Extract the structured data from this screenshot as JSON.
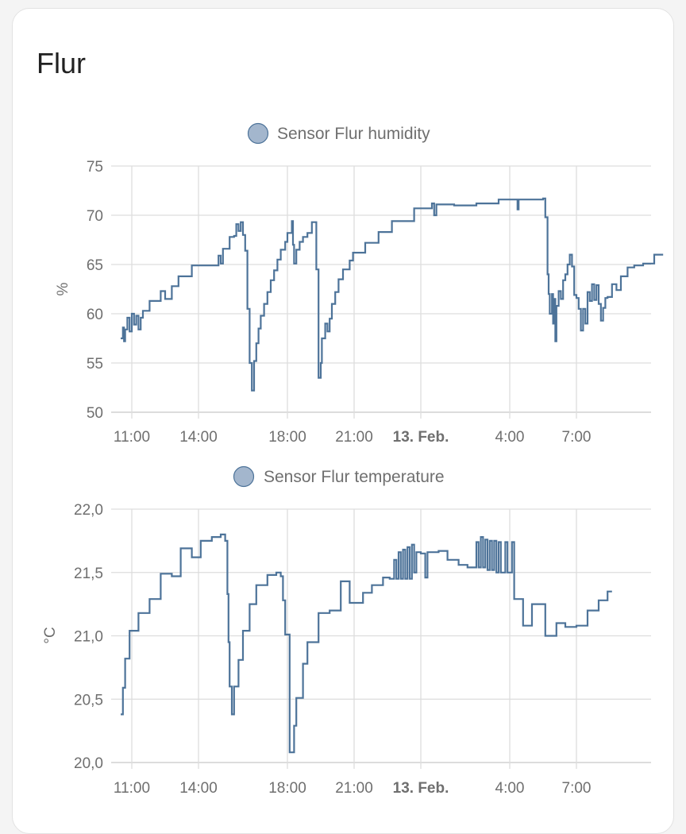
{
  "card": {
    "title": "Flur"
  },
  "colors": {
    "line": "#4d7399",
    "legend_fill": "#a3b6cd",
    "legend_stroke": "#4d7399",
    "grid": "#dddddd",
    "text": "#6f6f6f"
  },
  "chart_data": [
    {
      "type": "line",
      "legend": "Sensor Flur humidity",
      "ylabel": "%",
      "ylim": [
        50,
        75
      ],
      "yticks": [
        "50",
        "55",
        "60",
        "65",
        "70",
        "75"
      ],
      "x_unit": "hours since 00:00 on 12 Feb",
      "xticks": [
        {
          "label": "11:00",
          "x": 11,
          "bold": false
        },
        {
          "label": "14:00",
          "x": 14,
          "bold": false
        },
        {
          "label": "18:00",
          "x": 18,
          "bold": false
        },
        {
          "label": "21:00",
          "x": 21,
          "bold": false
        },
        {
          "label": "13. Feb.",
          "x": 24,
          "bold": true
        },
        {
          "label": "4:00",
          "x": 28,
          "bold": false
        },
        {
          "label": "7:00",
          "x": 31,
          "bold": false
        }
      ],
      "xlim": [
        10.5,
        34.9
      ],
      "series": [
        {
          "name": "Sensor Flur humidity",
          "step": true,
          "points": [
            [
              10.5,
              57.5
            ],
            [
              10.6,
              58.6
            ],
            [
              10.65,
              57.2
            ],
            [
              10.7,
              58.4
            ],
            [
              10.8,
              59.6
            ],
            [
              10.9,
              58.2
            ],
            [
              11.0,
              60.0
            ],
            [
              11.1,
              58.9
            ],
            [
              11.2,
              59.8
            ],
            [
              11.3,
              58.4
            ],
            [
              11.4,
              59.6
            ],
            [
              11.5,
              60.3
            ],
            [
              11.8,
              61.3
            ],
            [
              12.2,
              61.3
            ],
            [
              12.3,
              62.3
            ],
            [
              12.5,
              61.5
            ],
            [
              12.8,
              62.8
            ],
            [
              13.1,
              63.8
            ],
            [
              13.6,
              63.8
            ],
            [
              13.7,
              64.9
            ],
            [
              14.8,
              64.9
            ],
            [
              14.9,
              65.9
            ],
            [
              15.0,
              65.1
            ],
            [
              15.1,
              66.6
            ],
            [
              15.4,
              67.8
            ],
            [
              15.6,
              67.9
            ],
            [
              15.7,
              69.1
            ],
            [
              15.8,
              68.4
            ],
            [
              15.9,
              69.3
            ],
            [
              16.0,
              68.0
            ],
            [
              16.1,
              66.4
            ],
            [
              16.2,
              60.5
            ],
            [
              16.3,
              55.0
            ],
            [
              16.4,
              52.2
            ],
            [
              16.5,
              55.2
            ],
            [
              16.6,
              57.0
            ],
            [
              16.7,
              58.5
            ],
            [
              16.8,
              59.8
            ],
            [
              16.95,
              61.0
            ],
            [
              17.1,
              62.2
            ],
            [
              17.25,
              63.4
            ],
            [
              17.4,
              64.4
            ],
            [
              17.55,
              65.5
            ],
            [
              17.7,
              66.5
            ],
            [
              17.9,
              67.3
            ],
            [
              18.0,
              68.2
            ],
            [
              18.2,
              69.4
            ],
            [
              18.25,
              67.0
            ],
            [
              18.3,
              65.1
            ],
            [
              18.4,
              66.5
            ],
            [
              18.55,
              67.3
            ],
            [
              18.7,
              67.8
            ],
            [
              18.9,
              68.2
            ],
            [
              19.1,
              69.3
            ],
            [
              19.3,
              64.5
            ],
            [
              19.4,
              53.5
            ],
            [
              19.5,
              55.0
            ],
            [
              19.55,
              57.5
            ],
            [
              19.7,
              59.0
            ],
            [
              19.8,
              58.2
            ],
            [
              19.9,
              59.5
            ],
            [
              20.0,
              61.0
            ],
            [
              20.15,
              62.2
            ],
            [
              20.3,
              63.5
            ],
            [
              20.5,
              64.5
            ],
            [
              20.8,
              65.4
            ],
            [
              20.95,
              66.2
            ],
            [
              21.5,
              67.2
            ],
            [
              22.1,
              68.3
            ],
            [
              22.7,
              69.4
            ],
            [
              23.7,
              70.7
            ],
            [
              24.5,
              71.2
            ],
            [
              24.6,
              70.0
            ],
            [
              24.7,
              71.1
            ],
            [
              25.0,
              71.1
            ],
            [
              25.5,
              71.0
            ],
            [
              26.5,
              71.2
            ],
            [
              27.5,
              71.6
            ],
            [
              28.3,
              71.6
            ],
            [
              28.35,
              70.6
            ],
            [
              28.4,
              71.6
            ],
            [
              29.5,
              71.7
            ],
            [
              29.6,
              69.8
            ],
            [
              29.7,
              64.0
            ],
            [
              29.75,
              62.0
            ],
            [
              29.8,
              60.0
            ],
            [
              29.9,
              62.0
            ],
            [
              29.95,
              59.0
            ],
            [
              30.0,
              61.5
            ],
            [
              30.05,
              57.2
            ],
            [
              30.1,
              60.8
            ],
            [
              30.2,
              62.3
            ],
            [
              30.3,
              61.5
            ],
            [
              30.4,
              63.4
            ],
            [
              30.5,
              64.0
            ],
            [
              30.6,
              65.0
            ],
            [
              30.7,
              66.0
            ],
            [
              30.8,
              64.8
            ],
            [
              30.9,
              61.9
            ],
            [
              31.0,
              61.6
            ],
            [
              31.1,
              60.5
            ],
            [
              31.2,
              58.3
            ],
            [
              31.3,
              60.5
            ],
            [
              31.4,
              59.0
            ],
            [
              31.5,
              62.2
            ],
            [
              31.6,
              61.3
            ],
            [
              31.7,
              63.0
            ],
            [
              31.8,
              61.4
            ],
            [
              31.9,
              62.9
            ],
            [
              32.0,
              61.0
            ],
            [
              32.1,
              59.3
            ],
            [
              32.2,
              60.6
            ],
            [
              32.3,
              61.6
            ],
            [
              32.4,
              61.7
            ],
            [
              32.6,
              63.0
            ],
            [
              32.8,
              62.4
            ],
            [
              33.0,
              63.8
            ],
            [
              33.3,
              64.7
            ],
            [
              33.6,
              64.9
            ],
            [
              34.0,
              65.1
            ],
            [
              34.5,
              66.0
            ],
            [
              34.9,
              66.0
            ]
          ]
        }
      ]
    },
    {
      "type": "line",
      "legend": "Sensor Flur temperature",
      "ylabel": "°C",
      "ylim": [
        20.0,
        22.0
      ],
      "yticks": [
        "20,0",
        "20,5",
        "21,0",
        "21,5",
        "22,0"
      ],
      "x_unit": "hours since 00:00 on 12 Feb",
      "xticks": [
        {
          "label": "11:00",
          "x": 11,
          "bold": false
        },
        {
          "label": "14:00",
          "x": 14,
          "bold": false
        },
        {
          "label": "18:00",
          "x": 18,
          "bold": false
        },
        {
          "label": "21:00",
          "x": 21,
          "bold": false
        },
        {
          "label": "13. Feb.",
          "x": 24,
          "bold": true
        },
        {
          "label": "4:00",
          "x": 28,
          "bold": false
        },
        {
          "label": "7:00",
          "x": 31,
          "bold": false
        }
      ],
      "xlim": [
        10.5,
        34.9
      ],
      "series": [
        {
          "name": "Sensor Flur temperature",
          "step": true,
          "points": [
            [
              10.5,
              20.38
            ],
            [
              10.6,
              20.59
            ],
            [
              10.7,
              20.82
            ],
            [
              10.9,
              21.04
            ],
            [
              11.3,
              21.18
            ],
            [
              11.8,
              21.29
            ],
            [
              12.3,
              21.49
            ],
            [
              12.8,
              21.47
            ],
            [
              13.2,
              21.69
            ],
            [
              13.7,
              21.62
            ],
            [
              14.1,
              21.75
            ],
            [
              14.6,
              21.78
            ],
            [
              15.0,
              21.8
            ],
            [
              15.2,
              21.75
            ],
            [
              15.3,
              21.33
            ],
            [
              15.35,
              20.95
            ],
            [
              15.4,
              20.6
            ],
            [
              15.5,
              20.38
            ],
            [
              15.6,
              20.6
            ],
            [
              15.8,
              20.81
            ],
            [
              16.0,
              21.04
            ],
            [
              16.3,
              21.25
            ],
            [
              16.6,
              21.4
            ],
            [
              17.1,
              21.48
            ],
            [
              17.5,
              21.5
            ],
            [
              17.7,
              21.47
            ],
            [
              17.8,
              21.28
            ],
            [
              17.9,
              21.01
            ],
            [
              18.1,
              20.08
            ],
            [
              18.3,
              20.29
            ],
            [
              18.4,
              20.51
            ],
            [
              18.7,
              20.78
            ],
            [
              18.9,
              20.95
            ],
            [
              19.4,
              21.18
            ],
            [
              19.9,
              21.2
            ],
            [
              20.4,
              21.43
            ],
            [
              20.8,
              21.26
            ],
            [
              21.4,
              21.34
            ],
            [
              21.8,
              21.4
            ],
            [
              22.3,
              21.46
            ],
            [
              22.6,
              21.45
            ],
            [
              22.8,
              21.6
            ],
            [
              22.9,
              21.45
            ],
            [
              23.0,
              21.66
            ],
            [
              23.1,
              21.45
            ],
            [
              23.2,
              21.68
            ],
            [
              23.3,
              21.45
            ],
            [
              23.4,
              21.7
            ],
            [
              23.5,
              21.45
            ],
            [
              23.6,
              21.72
            ],
            [
              23.7,
              21.5
            ],
            [
              23.8,
              21.66
            ],
            [
              24.0,
              21.65
            ],
            [
              24.2,
              21.46
            ],
            [
              24.3,
              21.66
            ],
            [
              24.8,
              21.67
            ],
            [
              25.2,
              21.6
            ],
            [
              25.7,
              21.56
            ],
            [
              26.1,
              21.54
            ],
            [
              26.5,
              21.74
            ],
            [
              26.6,
              21.54
            ],
            [
              26.7,
              21.78
            ],
            [
              26.8,
              21.54
            ],
            [
              26.9,
              21.76
            ],
            [
              27.0,
              21.52
            ],
            [
              27.1,
              21.75
            ],
            [
              27.2,
              21.52
            ],
            [
              27.3,
              21.75
            ],
            [
              27.4,
              21.5
            ],
            [
              27.5,
              21.74
            ],
            [
              27.6,
              21.5
            ],
            [
              27.8,
              21.74
            ],
            [
              27.9,
              21.5
            ],
            [
              28.1,
              21.74
            ],
            [
              28.2,
              21.29
            ],
            [
              28.6,
              21.08
            ],
            [
              29.0,
              21.25
            ],
            [
              29.6,
              21.0
            ],
            [
              30.1,
              21.1
            ],
            [
              30.5,
              21.07
            ],
            [
              31.0,
              21.08
            ],
            [
              31.5,
              21.2
            ],
            [
              32.0,
              21.28
            ],
            [
              32.4,
              21.35
            ],
            [
              32.6,
              21.35
            ]
          ]
        }
      ]
    }
  ]
}
